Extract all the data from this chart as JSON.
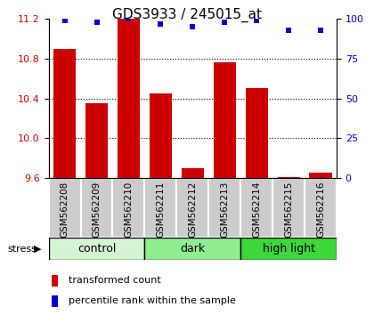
{
  "title": "GDS3933 / 245015_at",
  "samples": [
    "GSM562208",
    "GSM562209",
    "GSM562210",
    "GSM562211",
    "GSM562212",
    "GSM562213",
    "GSM562214",
    "GSM562215",
    "GSM562216"
  ],
  "bar_values": [
    10.9,
    10.35,
    11.2,
    10.45,
    9.7,
    10.76,
    10.5,
    9.61,
    9.65
  ],
  "percentile_values": [
    99,
    98,
    100,
    97,
    95,
    98,
    99,
    93,
    93
  ],
  "ylim": [
    9.6,
    11.2
  ],
  "yticks": [
    9.6,
    10.0,
    10.4,
    10.8,
    11.2
  ],
  "right_yticks": [
    0,
    25,
    50,
    75,
    100
  ],
  "right_ylim": [
    0,
    100
  ],
  "bar_color": "#cc0000",
  "dot_color": "#0000cc",
  "sample_bg": "#cccccc",
  "groups": [
    {
      "label": "control",
      "start": 0,
      "end": 3,
      "color": "#d4f5d4"
    },
    {
      "label": "dark",
      "start": 3,
      "end": 6,
      "color": "#90ee90"
    },
    {
      "label": "high light",
      "start": 6,
      "end": 9,
      "color": "#3dd63d"
    }
  ],
  "stress_label": "stress",
  "legend_bar_label": "transformed count",
  "legend_dot_label": "percentile rank within the sample",
  "title_fontsize": 11,
  "tick_fontsize": 8,
  "group_fontsize": 9,
  "sample_fontsize": 7.5
}
